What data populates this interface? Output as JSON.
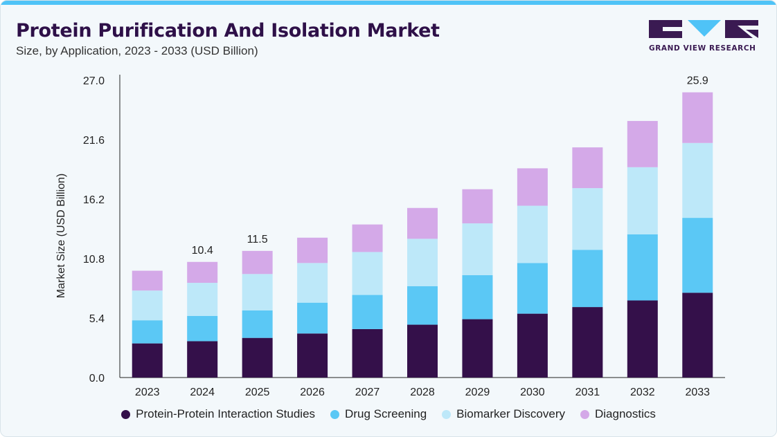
{
  "header": {
    "title": "Protein Purification And Isolation Market",
    "subtitle": "Size, by Application, 2023 - 2033 (USD Billion)",
    "logo_text": "GRAND VIEW RESEARCH"
  },
  "colors": {
    "accent_bar": "#4fc3f7",
    "title": "#2e1048"
  },
  "chart_data": {
    "type": "bar",
    "stacked": true,
    "title": "Protein Purification And Isolation Market",
    "subtitle": "Size, by Application, 2023 - 2033 (USD Billion)",
    "xlabel": "",
    "ylabel": "Market Size (USD Billion)",
    "ylim": [
      0,
      27.0
    ],
    "yticks": [
      "0.0",
      "5.4",
      "10.8",
      "16.2",
      "21.6",
      "27.0"
    ],
    "categories": [
      "2023",
      "2024",
      "2025",
      "2026",
      "2027",
      "2028",
      "2029",
      "2030",
      "2031",
      "2032",
      "2033"
    ],
    "series": [
      {
        "name": "Protein-Protein Interaction Studies",
        "color": "#34104a",
        "values": [
          3.1,
          3.3,
          3.6,
          4.0,
          4.4,
          4.8,
          5.3,
          5.8,
          6.4,
          7.0,
          7.7
        ]
      },
      {
        "name": "Drug Screening",
        "color": "#5bc8f5",
        "values": [
          2.1,
          2.3,
          2.5,
          2.8,
          3.1,
          3.5,
          4.0,
          4.6,
          5.2,
          6.0,
          6.8
        ]
      },
      {
        "name": "Biomarker Discovery",
        "color": "#bde8f9",
        "values": [
          2.7,
          3.0,
          3.3,
          3.6,
          3.9,
          4.3,
          4.7,
          5.2,
          5.6,
          6.1,
          6.8
        ]
      },
      {
        "name": "Diagnostics",
        "color": "#d4a9e8",
        "values": [
          1.8,
          1.9,
          2.1,
          2.3,
          2.5,
          2.8,
          3.1,
          3.4,
          3.7,
          4.2,
          4.6
        ]
      }
    ],
    "data_labels": [
      {
        "category": "2024",
        "text": "10.4"
      },
      {
        "category": "2025",
        "text": "11.5"
      },
      {
        "category": "2033",
        "text": "25.9"
      }
    ],
    "legend_position": "bottom",
    "grid": false
  }
}
